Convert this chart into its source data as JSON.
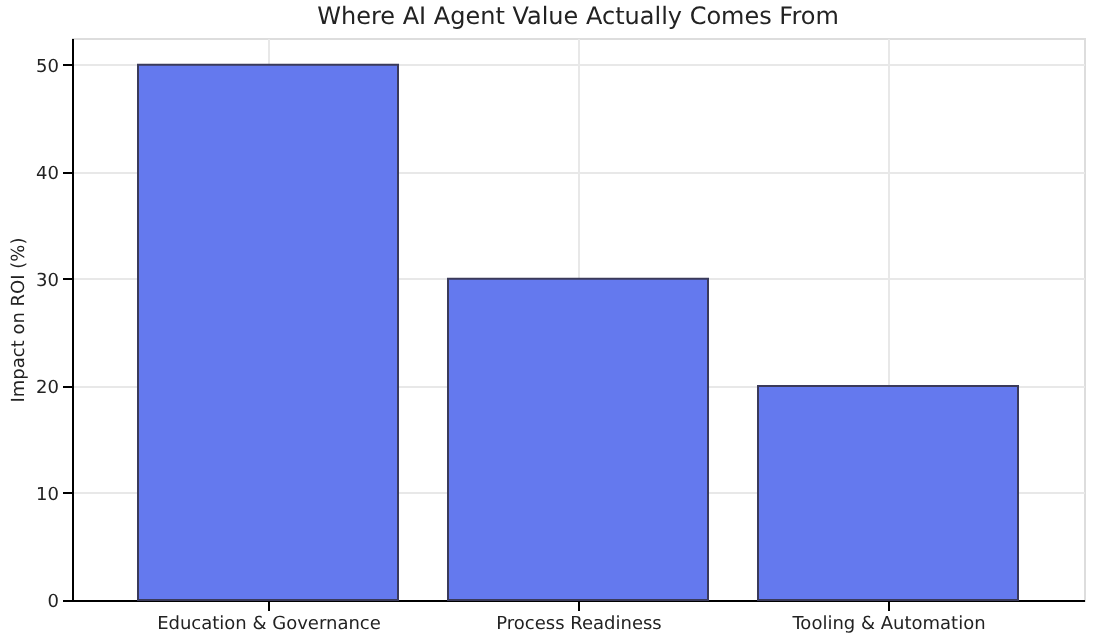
{
  "chart_data": {
    "type": "bar",
    "title": "Where AI Agent Value Actually Comes From",
    "ylabel": "Impact on ROI (%)",
    "categories": [
      "Education & Governance",
      "Process Readiness",
      "Tooling & Automation"
    ],
    "values": [
      50,
      30,
      20
    ],
    "color": "#6479ee",
    "ylim": [
      0,
      52.5
    ],
    "yticks": [
      0,
      10,
      20,
      30,
      40,
      50
    ],
    "grid": true
  }
}
